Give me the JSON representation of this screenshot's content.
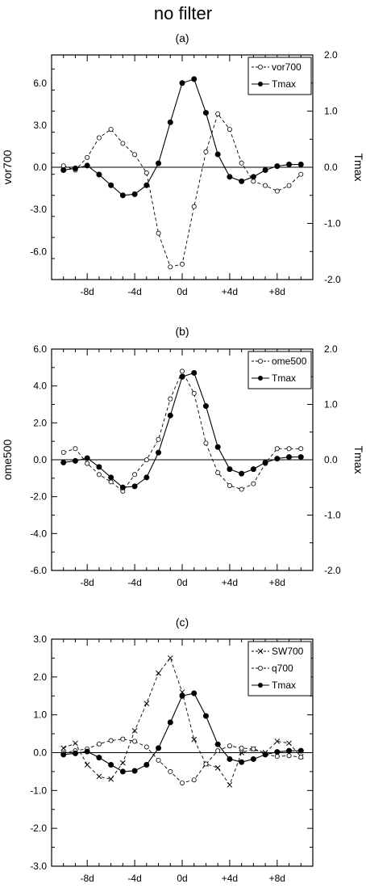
{
  "figure_title": "no filter",
  "chart_data": [
    {
      "type": "line",
      "panel_label": "(a)",
      "x": [
        -10,
        -9,
        -8,
        -7,
        -6,
        -5,
        -4,
        -3,
        -2,
        -1,
        0,
        1,
        2,
        3,
        4,
        5,
        6,
        7,
        8,
        9,
        10
      ],
      "xticklabels": [
        "-8d",
        "-4d",
        "0d",
        "+4d",
        "+8d"
      ],
      "xtick_values": [
        -8,
        -4,
        0,
        4,
        8
      ],
      "xlim": [
        -11,
        11
      ],
      "left_axis": {
        "label": "vor700",
        "ylim": [
          -8.0,
          8.0
        ],
        "ticks": [
          -6.0,
          -3.0,
          0.0,
          3.0,
          6.0
        ],
        "ticklabels": [
          "-6.0",
          "-3.0",
          "0.0",
          "3.0",
          "6.0"
        ]
      },
      "right_axis": {
        "label": "Tmax",
        "ylim": [
          -2.0,
          2.0
        ],
        "ticks": [
          -2.0,
          -1.0,
          0.0,
          1.0,
          2.0
        ],
        "ticklabels": [
          "-2.0",
          "-1.0",
          "0.0",
          "1.0",
          "2.0"
        ]
      },
      "legend": "top-right",
      "series": [
        {
          "name": "vor700",
          "axis": "left",
          "style": "dashed-open-circle",
          "values": [
            0.1,
            -0.2,
            0.7,
            2.1,
            2.7,
            1.7,
            0.9,
            -0.4,
            -4.7,
            -7.1,
            -6.9,
            -2.8,
            1.1,
            3.8,
            2.7,
            0.3,
            -1.0,
            -1.3,
            -1.7,
            -1.3,
            -0.5
          ]
        },
        {
          "name": "Tmax",
          "axis": "right",
          "style": "solid-filled-circle",
          "values": [
            -0.05,
            -0.02,
            0.03,
            -0.13,
            -0.32,
            -0.5,
            -0.48,
            -0.32,
            0.07,
            0.8,
            1.5,
            1.57,
            0.97,
            0.23,
            -0.17,
            -0.25,
            -0.17,
            -0.05,
            0.02,
            0.05,
            0.05
          ]
        }
      ]
    },
    {
      "type": "line",
      "panel_label": "(b)",
      "x": [
        -10,
        -9,
        -8,
        -7,
        -6,
        -5,
        -4,
        -3,
        -2,
        -1,
        0,
        1,
        2,
        3,
        4,
        5,
        6,
        7,
        8,
        9,
        10
      ],
      "xticklabels": [
        "-8d",
        "-4d",
        "0d",
        "+4d",
        "+8d"
      ],
      "xtick_values": [
        -8,
        -4,
        0,
        4,
        8
      ],
      "xlim": [
        -11,
        11
      ],
      "left_axis": {
        "label": "ome500",
        "ylim": [
          -6.0,
          6.0
        ],
        "ticks": [
          -6.0,
          -4.0,
          -2.0,
          0.0,
          2.0,
          4.0,
          6.0
        ],
        "ticklabels": [
          "-6.0",
          "-4.0",
          "-2.0",
          "0.0",
          "2.0",
          "4.0",
          "6.0"
        ]
      },
      "right_axis": {
        "label": "Tmax",
        "ylim": [
          -2.0,
          2.0
        ],
        "ticks": [
          -2.0,
          -1.0,
          0.0,
          1.0,
          2.0
        ],
        "ticklabels": [
          "-2.0",
          "-1.0",
          "0.0",
          "1.0",
          "2.0"
        ]
      },
      "legend": "top-right",
      "series": [
        {
          "name": "ome500",
          "axis": "left",
          "style": "dashed-open-circle",
          "values": [
            0.4,
            0.6,
            -0.2,
            -0.8,
            -1.2,
            -1.7,
            -0.8,
            0.0,
            1.1,
            3.3,
            4.8,
            3.6,
            0.9,
            -0.7,
            -1.4,
            -1.6,
            -1.3,
            -0.2,
            0.6,
            0.6,
            0.6
          ]
        },
        {
          "name": "Tmax",
          "axis": "right",
          "style": "solid-filled-circle",
          "values": [
            -0.05,
            -0.02,
            0.03,
            -0.13,
            -0.32,
            -0.5,
            -0.48,
            -0.32,
            0.13,
            0.8,
            1.5,
            1.57,
            0.97,
            0.23,
            -0.17,
            -0.25,
            -0.17,
            -0.05,
            0.02,
            0.05,
            0.05
          ]
        }
      ]
    },
    {
      "type": "line",
      "panel_label": "(c)",
      "x": [
        -10,
        -9,
        -8,
        -7,
        -6,
        -5,
        -4,
        -3,
        -2,
        -1,
        0,
        1,
        2,
        3,
        4,
        5,
        6,
        7,
        8,
        9,
        10
      ],
      "xticklabels": [
        "-8d",
        "-4d",
        "0d",
        "+4d",
        "+8d"
      ],
      "xtick_values": [
        -8,
        -4,
        0,
        4,
        8
      ],
      "xlim": [
        -11,
        11
      ],
      "left_axis": {
        "label": "",
        "ylim": [
          -3.0,
          3.0
        ],
        "ticks": [
          -3.0,
          -2.0,
          -1.0,
          0.0,
          1.0,
          2.0,
          3.0
        ],
        "ticklabels": [
          "-3.0",
          "-2.0",
          "-1.0",
          "0.0",
          "1.0",
          "2.0",
          "3.0"
        ]
      },
      "legend": "top-right",
      "series": [
        {
          "name": "SW700",
          "axis": "left",
          "style": "dashed-x",
          "values": [
            0.12,
            0.25,
            -0.32,
            -0.63,
            -0.7,
            -0.27,
            0.58,
            1.3,
            2.1,
            2.5,
            1.6,
            0.35,
            -0.3,
            -0.4,
            -0.85,
            0.0,
            0.1,
            0.0,
            0.3,
            0.25,
            -0.1
          ]
        },
        {
          "name": "q700",
          "axis": "left",
          "style": "dashed-open-circle",
          "values": [
            0.0,
            0.05,
            0.1,
            0.23,
            0.32,
            0.36,
            0.3,
            0.15,
            -0.2,
            -0.5,
            -0.8,
            -0.72,
            -0.3,
            0.05,
            0.18,
            0.12,
            0.1,
            -0.05,
            -0.1,
            -0.08,
            -0.12
          ]
        },
        {
          "name": "Tmax",
          "axis": "left",
          "style": "solid-filled-circle",
          "values": [
            -0.05,
            -0.02,
            0.03,
            -0.13,
            -0.32,
            -0.5,
            -0.48,
            -0.32,
            0.12,
            0.8,
            1.5,
            1.57,
            0.97,
            0.22,
            -0.17,
            -0.25,
            -0.17,
            -0.05,
            0.02,
            0.05,
            0.05
          ]
        }
      ]
    }
  ]
}
